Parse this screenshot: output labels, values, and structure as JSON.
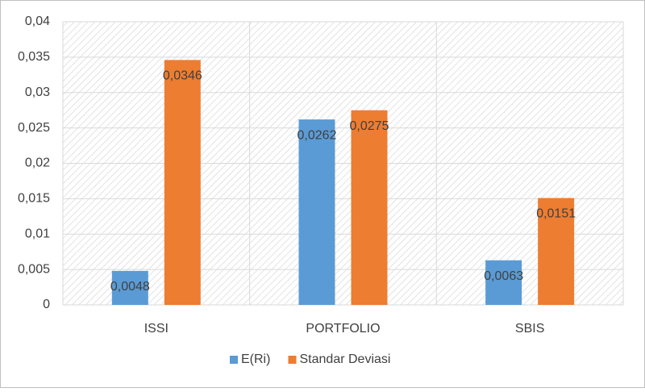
{
  "chart_data": {
    "type": "bar",
    "categories": [
      "ISSI",
      "PORTFOLIO",
      "SBIS"
    ],
    "series": [
      {
        "name": "E(Ri)",
        "color": "#5b9bd5",
        "values": [
          0.0048,
          0.0262,
          0.0063
        ],
        "value_labels": [
          "0,0048",
          "0,0262",
          "0,0063"
        ]
      },
      {
        "name": "Standar Deviasi",
        "color": "#ed7d31",
        "values": [
          0.0346,
          0.0275,
          0.0151
        ],
        "value_labels": [
          "0,0346",
          "0,0275",
          "0,0151"
        ]
      }
    ],
    "ylim": [
      0,
      0.04
    ],
    "yticks": [
      0,
      {
        "value": 0.005,
        "label": "0,005"
      },
      {
        "value": 0.01,
        "label": "0,01"
      },
      {
        "value": 0.015,
        "label": "0,015"
      },
      {
        "value": 0.02,
        "label": "0,02"
      },
      {
        "value": 0.025,
        "label": "0,025"
      },
      {
        "value": 0.03,
        "label": "0,03"
      },
      {
        "value": 0.035,
        "label": "0,035"
      },
      {
        "value": 0.04,
        "label": "0,04"
      }
    ],
    "grid": true,
    "legend": "bottom"
  }
}
